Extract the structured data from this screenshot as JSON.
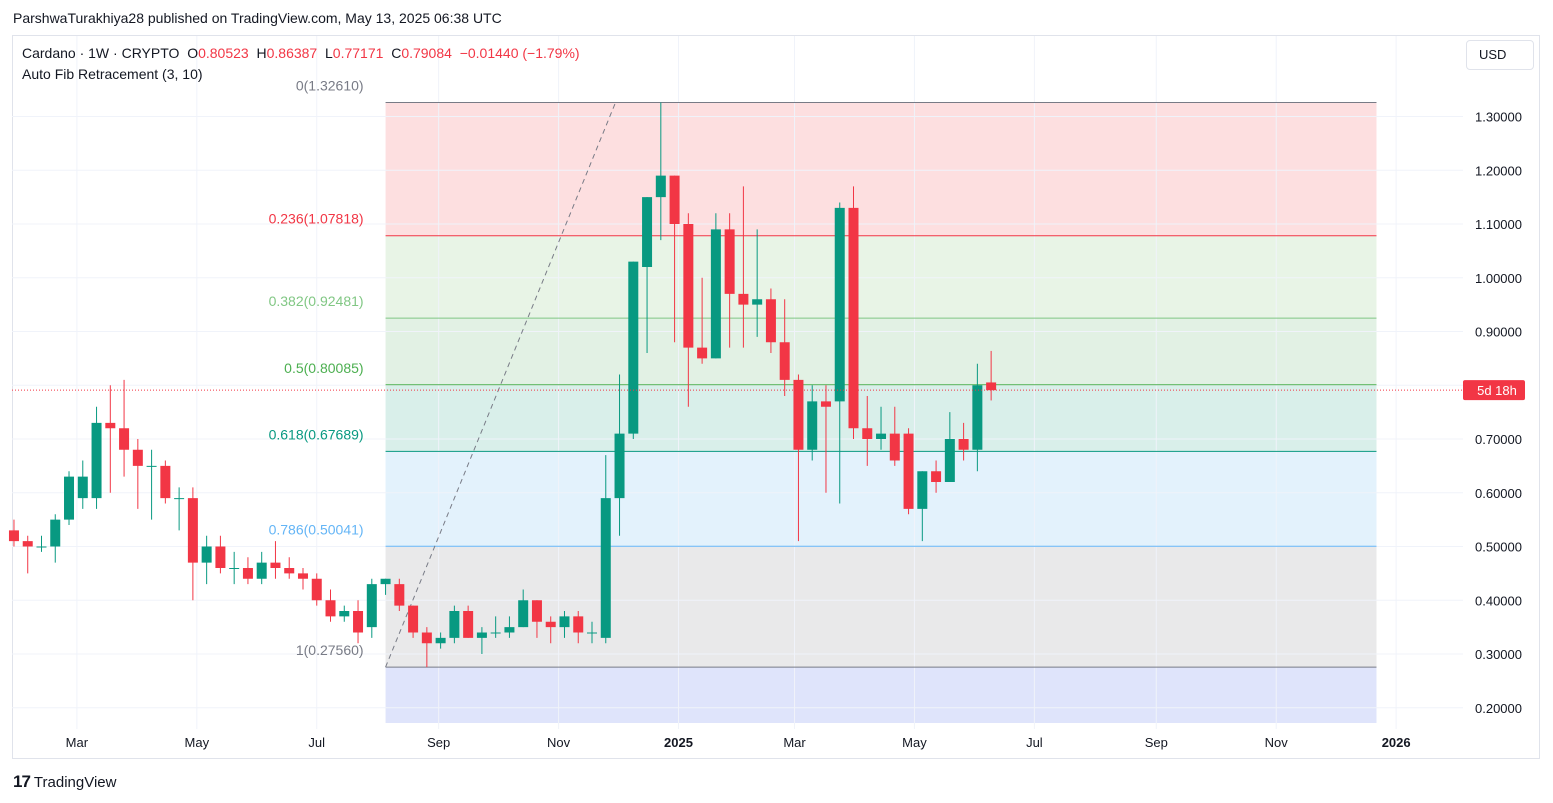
{
  "header": {
    "publisher": "ParshwaTurakhiya28 published on TradingView.com, May 13, 2025 06:38 UTC"
  },
  "legend": {
    "symbol": "Cardano · 1W · CRYPTO",
    "open_label": "O",
    "open": "0.80523",
    "high_label": "H",
    "high": "0.86387",
    "low_label": "L",
    "low": "0.77171",
    "close_label": "C",
    "close": "0.79084",
    "change": "−0.01440 (−1.79%)",
    "indicator": "Auto Fib Retracement (3, 10)"
  },
  "currency": "USD",
  "countdown": "5d 18h",
  "brand": {
    "logo": "17",
    "name": "TradingView"
  },
  "colors": {
    "up": "#089981",
    "down": "#f23645",
    "countdown_bg": "#f23645"
  },
  "chart_data": {
    "type": "candlestick",
    "timeframe": "1W",
    "y_axis": {
      "ticks": [
        0.2,
        0.3,
        0.4,
        0.5,
        0.6,
        0.7,
        0.8,
        0.9,
        1.0,
        1.1,
        1.2,
        1.3
      ],
      "tick_labels": [
        "0.20000",
        "0.30000",
        "0.40000",
        "0.50000",
        "0.60000",
        "0.70000",
        "0.80000",
        "0.90000",
        "1.00000",
        "1.10000",
        "1.20000",
        "1.30000"
      ],
      "range": [
        0.17,
        1.36
      ]
    },
    "x_axis": {
      "range": [
        "2024-01-28",
        "2026-02-04"
      ],
      "ticks": [
        {
          "date": "2024-03-01",
          "label": "Mar",
          "bold": false
        },
        {
          "date": "2024-05-01",
          "label": "May",
          "bold": false
        },
        {
          "date": "2024-07-01",
          "label": "Jul",
          "bold": false
        },
        {
          "date": "2024-09-01",
          "label": "Sep",
          "bold": false
        },
        {
          "date": "2024-11-01",
          "label": "Nov",
          "bold": false
        },
        {
          "date": "2025-01-01",
          "label": "2025",
          "bold": true
        },
        {
          "date": "2025-03-01",
          "label": "Mar",
          "bold": false
        },
        {
          "date": "2025-05-01",
          "label": "May",
          "bold": false
        },
        {
          "date": "2025-07-01",
          "label": "Jul",
          "bold": false
        },
        {
          "date": "2025-09-01",
          "label": "Sep",
          "bold": false
        },
        {
          "date": "2025-11-01",
          "label": "Nov",
          "bold": false
        },
        {
          "date": "2026-01-01",
          "label": "2026",
          "bold": true
        }
      ]
    },
    "fib": {
      "start_date": "2024-08-05",
      "end_date": "2025-12-22",
      "levels": [
        {
          "label": "0(1.32610)",
          "value": 1.3261,
          "line": "#787b86",
          "fill": "#fddfe0"
        },
        {
          "label": "0.236(1.07818)",
          "value": 1.07818,
          "line": "#f23645",
          "fill": "#e8f4e6"
        },
        {
          "label": "0.382(0.92481)",
          "value": 0.92481,
          "line": "#81c784",
          "fill": "#e2f1e4"
        },
        {
          "label": "0.5(0.80085)",
          "value": 0.80085,
          "line": "#4caf50",
          "fill": "#d9efea"
        },
        {
          "label": "0.618(0.67689)",
          "value": 0.67689,
          "line": "#089981",
          "fill": "#e3f2fc"
        },
        {
          "label": "0.786(0.50041)",
          "value": 0.50041,
          "line": "#64b5f6",
          "fill": "#e9e9ea"
        },
        {
          "label": "1(0.27560)",
          "value": 0.2756,
          "line": "#787b86",
          "fill": "#dfe4fb"
        }
      ],
      "label_colors": [
        "#787b86",
        "#f23645",
        "#81c784",
        "#4caf50",
        "#089981",
        "#64b5f6",
        "#787b86"
      ],
      "trend_line": {
        "from": {
          "date": "2024-08-05",
          "price": 0.2756
        },
        "to": {
          "date": "2024-12-02",
          "price": 1.3261
        }
      }
    },
    "last_price": 0.79084,
    "candles": [
      {
        "t": "2024-01-29",
        "o": 0.53,
        "h": 0.55,
        "l": 0.5,
        "c": 0.51
      },
      {
        "t": "2024-02-05",
        "o": 0.51,
        "h": 0.52,
        "l": 0.45,
        "c": 0.5
      },
      {
        "t": "2024-02-12",
        "o": 0.5,
        "h": 0.52,
        "l": 0.49,
        "c": 0.5
      },
      {
        "t": "2024-02-19",
        "o": 0.5,
        "h": 0.56,
        "l": 0.47,
        "c": 0.55
      },
      {
        "t": "2024-02-26",
        "o": 0.55,
        "h": 0.64,
        "l": 0.54,
        "c": 0.63
      },
      {
        "t": "2024-03-04",
        "o": 0.59,
        "h": 0.66,
        "l": 0.57,
        "c": 0.63
      },
      {
        "t": "2024-03-11",
        "o": 0.59,
        "h": 0.76,
        "l": 0.57,
        "c": 0.73
      },
      {
        "t": "2024-03-18",
        "o": 0.73,
        "h": 0.8,
        "l": 0.6,
        "c": 0.72
      },
      {
        "t": "2024-03-25",
        "o": 0.72,
        "h": 0.81,
        "l": 0.63,
        "c": 0.68
      },
      {
        "t": "2024-04-01",
        "o": 0.68,
        "h": 0.7,
        "l": 0.57,
        "c": 0.65
      },
      {
        "t": "2024-04-08",
        "o": 0.65,
        "h": 0.68,
        "l": 0.55,
        "c": 0.65
      },
      {
        "t": "2024-04-15",
        "o": 0.65,
        "h": 0.66,
        "l": 0.58,
        "c": 0.59
      },
      {
        "t": "2024-04-22",
        "o": 0.59,
        "h": 0.61,
        "l": 0.53,
        "c": 0.59
      },
      {
        "t": "2024-04-29",
        "o": 0.59,
        "h": 0.61,
        "l": 0.4,
        "c": 0.47
      },
      {
        "t": "2024-05-06",
        "o": 0.47,
        "h": 0.52,
        "l": 0.43,
        "c": 0.5
      },
      {
        "t": "2024-05-13",
        "o": 0.5,
        "h": 0.52,
        "l": 0.45,
        "c": 0.46
      },
      {
        "t": "2024-05-20",
        "o": 0.46,
        "h": 0.49,
        "l": 0.43,
        "c": 0.46
      },
      {
        "t": "2024-05-27",
        "o": 0.46,
        "h": 0.48,
        "l": 0.43,
        "c": 0.44
      },
      {
        "t": "2024-06-03",
        "o": 0.44,
        "h": 0.49,
        "l": 0.43,
        "c": 0.47
      },
      {
        "t": "2024-06-10",
        "o": 0.47,
        "h": 0.51,
        "l": 0.44,
        "c": 0.46
      },
      {
        "t": "2024-06-17",
        "o": 0.46,
        "h": 0.48,
        "l": 0.44,
        "c": 0.45
      },
      {
        "t": "2024-06-24",
        "o": 0.45,
        "h": 0.46,
        "l": 0.42,
        "c": 0.44
      },
      {
        "t": "2024-07-01",
        "o": 0.44,
        "h": 0.45,
        "l": 0.39,
        "c": 0.4
      },
      {
        "t": "2024-07-08",
        "o": 0.4,
        "h": 0.42,
        "l": 0.36,
        "c": 0.37
      },
      {
        "t": "2024-07-15",
        "o": 0.37,
        "h": 0.39,
        "l": 0.36,
        "c": 0.38
      },
      {
        "t": "2024-07-22",
        "o": 0.38,
        "h": 0.4,
        "l": 0.32,
        "c": 0.34
      },
      {
        "t": "2024-07-29",
        "o": 0.35,
        "h": 0.44,
        "l": 0.33,
        "c": 0.43
      },
      {
        "t": "2024-08-05",
        "o": 0.43,
        "h": 0.44,
        "l": 0.41,
        "c": 0.44
      },
      {
        "t": "2024-08-12",
        "o": 0.43,
        "h": 0.44,
        "l": 0.38,
        "c": 0.39
      },
      {
        "t": "2024-08-19",
        "o": 0.39,
        "h": 0.39,
        "l": 0.33,
        "c": 0.34
      },
      {
        "t": "2024-08-26",
        "o": 0.34,
        "h": 0.35,
        "l": 0.2756,
        "c": 0.32
      },
      {
        "t": "2024-09-02",
        "o": 0.32,
        "h": 0.34,
        "l": 0.31,
        "c": 0.33
      },
      {
        "t": "2024-09-09",
        "o": 0.33,
        "h": 0.39,
        "l": 0.32,
        "c": 0.38
      },
      {
        "t": "2024-09-16",
        "o": 0.38,
        "h": 0.39,
        "l": 0.33,
        "c": 0.33
      },
      {
        "t": "2024-09-23",
        "o": 0.33,
        "h": 0.35,
        "l": 0.3,
        "c": 0.34
      },
      {
        "t": "2024-09-30",
        "o": 0.34,
        "h": 0.37,
        "l": 0.33,
        "c": 0.34
      },
      {
        "t": "2024-10-07",
        "o": 0.34,
        "h": 0.37,
        "l": 0.33,
        "c": 0.35
      },
      {
        "t": "2024-10-14",
        "o": 0.35,
        "h": 0.42,
        "l": 0.35,
        "c": 0.4
      },
      {
        "t": "2024-10-21",
        "o": 0.4,
        "h": 0.4,
        "l": 0.33,
        "c": 0.36
      },
      {
        "t": "2024-10-28",
        "o": 0.36,
        "h": 0.37,
        "l": 0.32,
        "c": 0.35
      },
      {
        "t": "2024-11-04",
        "o": 0.35,
        "h": 0.38,
        "l": 0.33,
        "c": 0.37
      },
      {
        "t": "2024-11-11",
        "o": 0.37,
        "h": 0.38,
        "l": 0.32,
        "c": 0.34
      },
      {
        "t": "2024-11-18",
        "o": 0.34,
        "h": 0.36,
        "l": 0.32,
        "c": 0.34
      },
      {
        "t": "2024-11-25",
        "o": 0.33,
        "h": 0.67,
        "l": 0.32,
        "c": 0.59
      },
      {
        "t": "2024-12-02",
        "o": 0.59,
        "h": 0.82,
        "l": 0.52,
        "c": 0.71
      },
      {
        "t": "2024-12-09",
        "o": 0.71,
        "h": 1.03,
        "l": 0.7,
        "c": 1.03
      },
      {
        "t": "2024-12-16",
        "o": 1.02,
        "h": 1.15,
        "l": 0.86,
        "c": 1.15
      },
      {
        "t": "2024-12-23",
        "o": 1.15,
        "h": 1.3261,
        "l": 1.07,
        "c": 1.19
      },
      {
        "t": "2024-12-30",
        "o": 1.19,
        "h": 1.19,
        "l": 0.88,
        "c": 1.1
      },
      {
        "t": "2025-01-06",
        "o": 1.1,
        "h": 1.12,
        "l": 0.76,
        "c": 0.87
      },
      {
        "t": "2025-01-13",
        "o": 0.87,
        "h": 1.0,
        "l": 0.84,
        "c": 0.85
      },
      {
        "t": "2025-01-20",
        "o": 0.85,
        "h": 1.12,
        "l": 0.85,
        "c": 1.09
      },
      {
        "t": "2025-01-27",
        "o": 1.09,
        "h": 1.12,
        "l": 0.87,
        "c": 0.97
      },
      {
        "t": "2025-02-03",
        "o": 0.97,
        "h": 1.17,
        "l": 0.87,
        "c": 0.95
      },
      {
        "t": "2025-02-10",
        "o": 0.95,
        "h": 1.09,
        "l": 0.89,
        "c": 0.96
      },
      {
        "t": "2025-02-17",
        "o": 0.96,
        "h": 0.98,
        "l": 0.86,
        "c": 0.88
      },
      {
        "t": "2025-02-24",
        "o": 0.88,
        "h": 0.96,
        "l": 0.78,
        "c": 0.81
      },
      {
        "t": "2025-03-03",
        "o": 0.81,
        "h": 0.82,
        "l": 0.51,
        "c": 0.68
      },
      {
        "t": "2025-03-10",
        "o": 0.68,
        "h": 0.8,
        "l": 0.66,
        "c": 0.77
      },
      {
        "t": "2025-03-17",
        "o": 0.77,
        "h": 0.8,
        "l": 0.6,
        "c": 0.76
      },
      {
        "t": "2025-03-24",
        "o": 0.77,
        "h": 1.14,
        "l": 0.58,
        "c": 1.13
      },
      {
        "t": "2025-03-31",
        "o": 1.13,
        "h": 1.17,
        "l": 0.7,
        "c": 0.72
      },
      {
        "t": "2025-04-07",
        "o": 0.72,
        "h": 0.78,
        "l": 0.65,
        "c": 0.7
      },
      {
        "t": "2025-04-14",
        "o": 0.7,
        "h": 0.76,
        "l": 0.68,
        "c": 0.71
      },
      {
        "t": "2025-04-21",
        "o": 0.71,
        "h": 0.76,
        "l": 0.65,
        "c": 0.66
      },
      {
        "t": "2025-04-28",
        "o": 0.71,
        "h": 0.72,
        "l": 0.56,
        "c": 0.57
      },
      {
        "t": "2025-05-05",
        "o": 0.57,
        "h": 0.64,
        "l": 0.51,
        "c": 0.64
      },
      {
        "t": "2025-05-12",
        "o": 0.64,
        "h": 0.66,
        "l": 0.6,
        "c": 0.62
      },
      {
        "t": "2025-05-19",
        "o": 0.62,
        "h": 0.75,
        "l": 0.62,
        "c": 0.7
      },
      {
        "t": "2025-05-26",
        "o": 0.7,
        "h": 0.73,
        "l": 0.66,
        "c": 0.68
      },
      {
        "t": "2025-06-02",
        "o": 0.68,
        "h": 0.84,
        "l": 0.64,
        "c": 0.8
      },
      {
        "t": "2025-06-09",
        "o": 0.80523,
        "h": 0.86387,
        "l": 0.77171,
        "c": 0.79084
      }
    ]
  }
}
